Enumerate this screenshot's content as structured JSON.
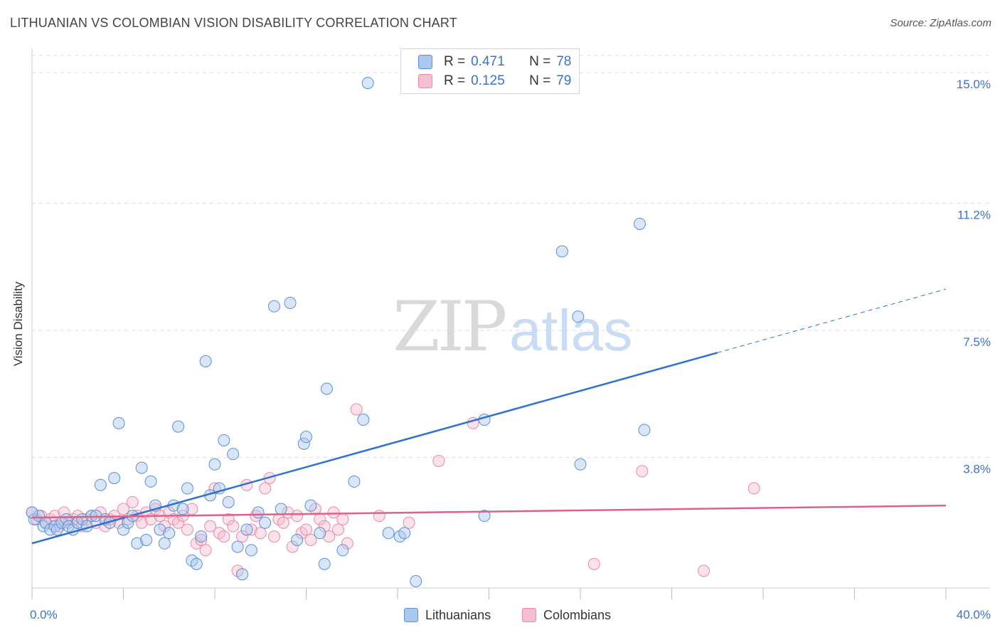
{
  "title": "LITHUANIAN VS COLOMBIAN VISION DISABILITY CORRELATION CHART",
  "source": "Source: ZipAtlas.com",
  "watermark": {
    "zip": "ZIP",
    "atlas": "atlas"
  },
  "legend_top": {
    "rows": [
      {
        "r_label": "R =",
        "r_value": "0.471",
        "n_label": "N =",
        "n_value": "78"
      },
      {
        "r_label": "R =",
        "r_value": "0.125",
        "n_label": "N =",
        "n_value": "79"
      }
    ]
  },
  "legend_bottom": [
    "Lithuanians",
    "Colombians"
  ],
  "colors": {
    "blue_fill": "#aac8ee",
    "blue_stroke": "#5b8fd4",
    "blue_line": "#2f72cc",
    "pink_fill": "#f6bfd0",
    "pink_stroke": "#e88aa7",
    "pink_line": "#e0608c",
    "tick_text": "#3a73c9",
    "grid": "#dddddd"
  },
  "chart_data": {
    "type": "scatter",
    "title": "LITHUANIAN VS COLOMBIAN VISION DISABILITY CORRELATION CHART",
    "xlabel": "",
    "ylabel": "Vision Disability",
    "xlim": [
      0,
      40
    ],
    "ylim": [
      0,
      15.5
    ],
    "x_tick_labels": [
      "0.0%",
      "40.0%"
    ],
    "y_ticks": [
      3.8,
      7.5,
      11.2,
      15.0
    ],
    "y_tick_labels": [
      "3.8%",
      "7.5%",
      "11.2%",
      "15.0%"
    ],
    "grid": true,
    "legend_position": "top-center",
    "series": [
      {
        "name": "Lithuanians",
        "r": 0.471,
        "n": 78,
        "trend": {
          "x0": 0,
          "y0": 1.3,
          "x1": 30.0,
          "y1": 6.85,
          "dash_to_x": 40,
          "dash_to_y": 8.7
        },
        "points": [
          [
            0.1,
            2.0
          ],
          [
            0.3,
            2.1
          ],
          [
            0.5,
            1.8
          ],
          [
            0.6,
            1.9
          ],
          [
            0.8,
            1.7
          ],
          [
            1.0,
            1.8
          ],
          [
            1.1,
            1.7
          ],
          [
            1.3,
            1.9
          ],
          [
            1.5,
            2.0
          ],
          [
            1.6,
            1.8
          ],
          [
            1.8,
            1.7
          ],
          [
            2.0,
            1.9
          ],
          [
            2.2,
            2.0
          ],
          [
            2.4,
            1.8
          ],
          [
            2.6,
            2.1
          ],
          [
            2.8,
            2.1
          ],
          [
            3.0,
            3.0
          ],
          [
            3.2,
            2.0
          ],
          [
            3.4,
            1.9
          ],
          [
            3.6,
            3.2
          ],
          [
            3.8,
            4.8
          ],
          [
            4.0,
            1.7
          ],
          [
            4.2,
            1.9
          ],
          [
            4.4,
            2.1
          ],
          [
            4.6,
            1.3
          ],
          [
            4.8,
            3.5
          ],
          [
            5.0,
            1.4
          ],
          [
            5.2,
            3.1
          ],
          [
            5.4,
            2.4
          ],
          [
            5.6,
            1.7
          ],
          [
            5.8,
            1.3
          ],
          [
            6.0,
            1.6
          ],
          [
            6.2,
            2.4
          ],
          [
            6.4,
            4.7
          ],
          [
            6.6,
            2.3
          ],
          [
            6.8,
            2.9
          ],
          [
            7.0,
            0.8
          ],
          [
            7.2,
            0.7
          ],
          [
            7.4,
            1.5
          ],
          [
            7.6,
            6.6
          ],
          [
            7.8,
            2.7
          ],
          [
            8.0,
            3.6
          ],
          [
            8.2,
            2.9
          ],
          [
            8.4,
            4.3
          ],
          [
            8.6,
            2.5
          ],
          [
            8.8,
            3.9
          ],
          [
            9.0,
            1.2
          ],
          [
            9.2,
            0.4
          ],
          [
            9.4,
            1.7
          ],
          [
            9.6,
            1.1
          ],
          [
            9.9,
            2.2
          ],
          [
            10.2,
            1.9
          ],
          [
            10.6,
            8.2
          ],
          [
            10.9,
            2.3
          ],
          [
            11.3,
            8.3
          ],
          [
            11.6,
            1.4
          ],
          [
            11.9,
            4.2
          ],
          [
            12.0,
            4.4
          ],
          [
            12.2,
            2.4
          ],
          [
            12.6,
            1.6
          ],
          [
            12.8,
            0.7
          ],
          [
            12.9,
            5.8
          ],
          [
            13.6,
            1.1
          ],
          [
            14.1,
            3.1
          ],
          [
            14.5,
            4.9
          ],
          [
            14.7,
            14.7
          ],
          [
            15.6,
            1.6
          ],
          [
            16.1,
            1.5
          ],
          [
            16.3,
            1.6
          ],
          [
            16.8,
            0.2
          ],
          [
            19.8,
            4.9
          ],
          [
            19.8,
            2.1
          ],
          [
            23.2,
            9.8
          ],
          [
            23.9,
            7.9
          ],
          [
            24.0,
            3.6
          ],
          [
            26.6,
            10.6
          ],
          [
            26.8,
            4.6
          ],
          [
            0.0,
            2.2
          ]
        ]
      },
      {
        "name": "Colombians",
        "r": 0.125,
        "n": 79,
        "trend": {
          "x0": 0,
          "y0": 2.05,
          "x1": 40,
          "y1": 2.4
        },
        "points": [
          [
            0.0,
            2.2
          ],
          [
            0.2,
            2.0
          ],
          [
            0.4,
            2.1
          ],
          [
            0.6,
            1.9
          ],
          [
            0.8,
            2.0
          ],
          [
            1.0,
            2.1
          ],
          [
            1.2,
            1.8
          ],
          [
            1.4,
            2.2
          ],
          [
            1.6,
            1.9
          ],
          [
            1.8,
            2.0
          ],
          [
            2.0,
            2.1
          ],
          [
            2.2,
            1.8
          ],
          [
            2.4,
            2.0
          ],
          [
            2.6,
            2.1
          ],
          [
            2.8,
            1.9
          ],
          [
            3.0,
            2.2
          ],
          [
            3.2,
            1.8
          ],
          [
            3.4,
            2.0
          ],
          [
            3.6,
            2.1
          ],
          [
            3.8,
            1.9
          ],
          [
            4.0,
            2.3
          ],
          [
            4.2,
            2.0
          ],
          [
            4.4,
            2.5
          ],
          [
            4.6,
            2.1
          ],
          [
            4.8,
            1.9
          ],
          [
            5.0,
            2.2
          ],
          [
            5.2,
            2.0
          ],
          [
            5.4,
            2.3
          ],
          [
            5.6,
            2.1
          ],
          [
            5.8,
            1.8
          ],
          [
            6.0,
            2.2
          ],
          [
            6.2,
            2.0
          ],
          [
            6.4,
            1.9
          ],
          [
            6.6,
            2.1
          ],
          [
            6.8,
            1.7
          ],
          [
            7.0,
            2.3
          ],
          [
            7.2,
            1.3
          ],
          [
            7.4,
            1.4
          ],
          [
            7.6,
            1.1
          ],
          [
            7.8,
            1.8
          ],
          [
            8.0,
            2.9
          ],
          [
            8.2,
            1.6
          ],
          [
            8.4,
            1.5
          ],
          [
            8.6,
            2.0
          ],
          [
            8.8,
            1.8
          ],
          [
            9.0,
            0.5
          ],
          [
            9.2,
            1.5
          ],
          [
            9.4,
            3.0
          ],
          [
            9.6,
            1.7
          ],
          [
            9.8,
            2.1
          ],
          [
            10.0,
            1.6
          ],
          [
            10.2,
            2.9
          ],
          [
            10.4,
            3.2
          ],
          [
            10.6,
            1.5
          ],
          [
            10.8,
            2.0
          ],
          [
            11.0,
            1.9
          ],
          [
            11.2,
            2.2
          ],
          [
            11.4,
            1.2
          ],
          [
            11.6,
            2.1
          ],
          [
            11.8,
            1.6
          ],
          [
            12.0,
            1.7
          ],
          [
            12.2,
            1.4
          ],
          [
            12.4,
            2.3
          ],
          [
            12.6,
            2.0
          ],
          [
            12.8,
            1.8
          ],
          [
            13.0,
            1.5
          ],
          [
            13.2,
            2.2
          ],
          [
            13.4,
            1.7
          ],
          [
            13.6,
            2.0
          ],
          [
            13.8,
            1.3
          ],
          [
            14.2,
            5.2
          ],
          [
            15.2,
            2.1
          ],
          [
            16.5,
            1.9
          ],
          [
            17.8,
            3.7
          ],
          [
            19.3,
            4.8
          ],
          [
            24.6,
            0.7
          ],
          [
            26.7,
            3.4
          ],
          [
            29.4,
            0.5
          ],
          [
            31.6,
            2.9
          ]
        ]
      }
    ]
  }
}
